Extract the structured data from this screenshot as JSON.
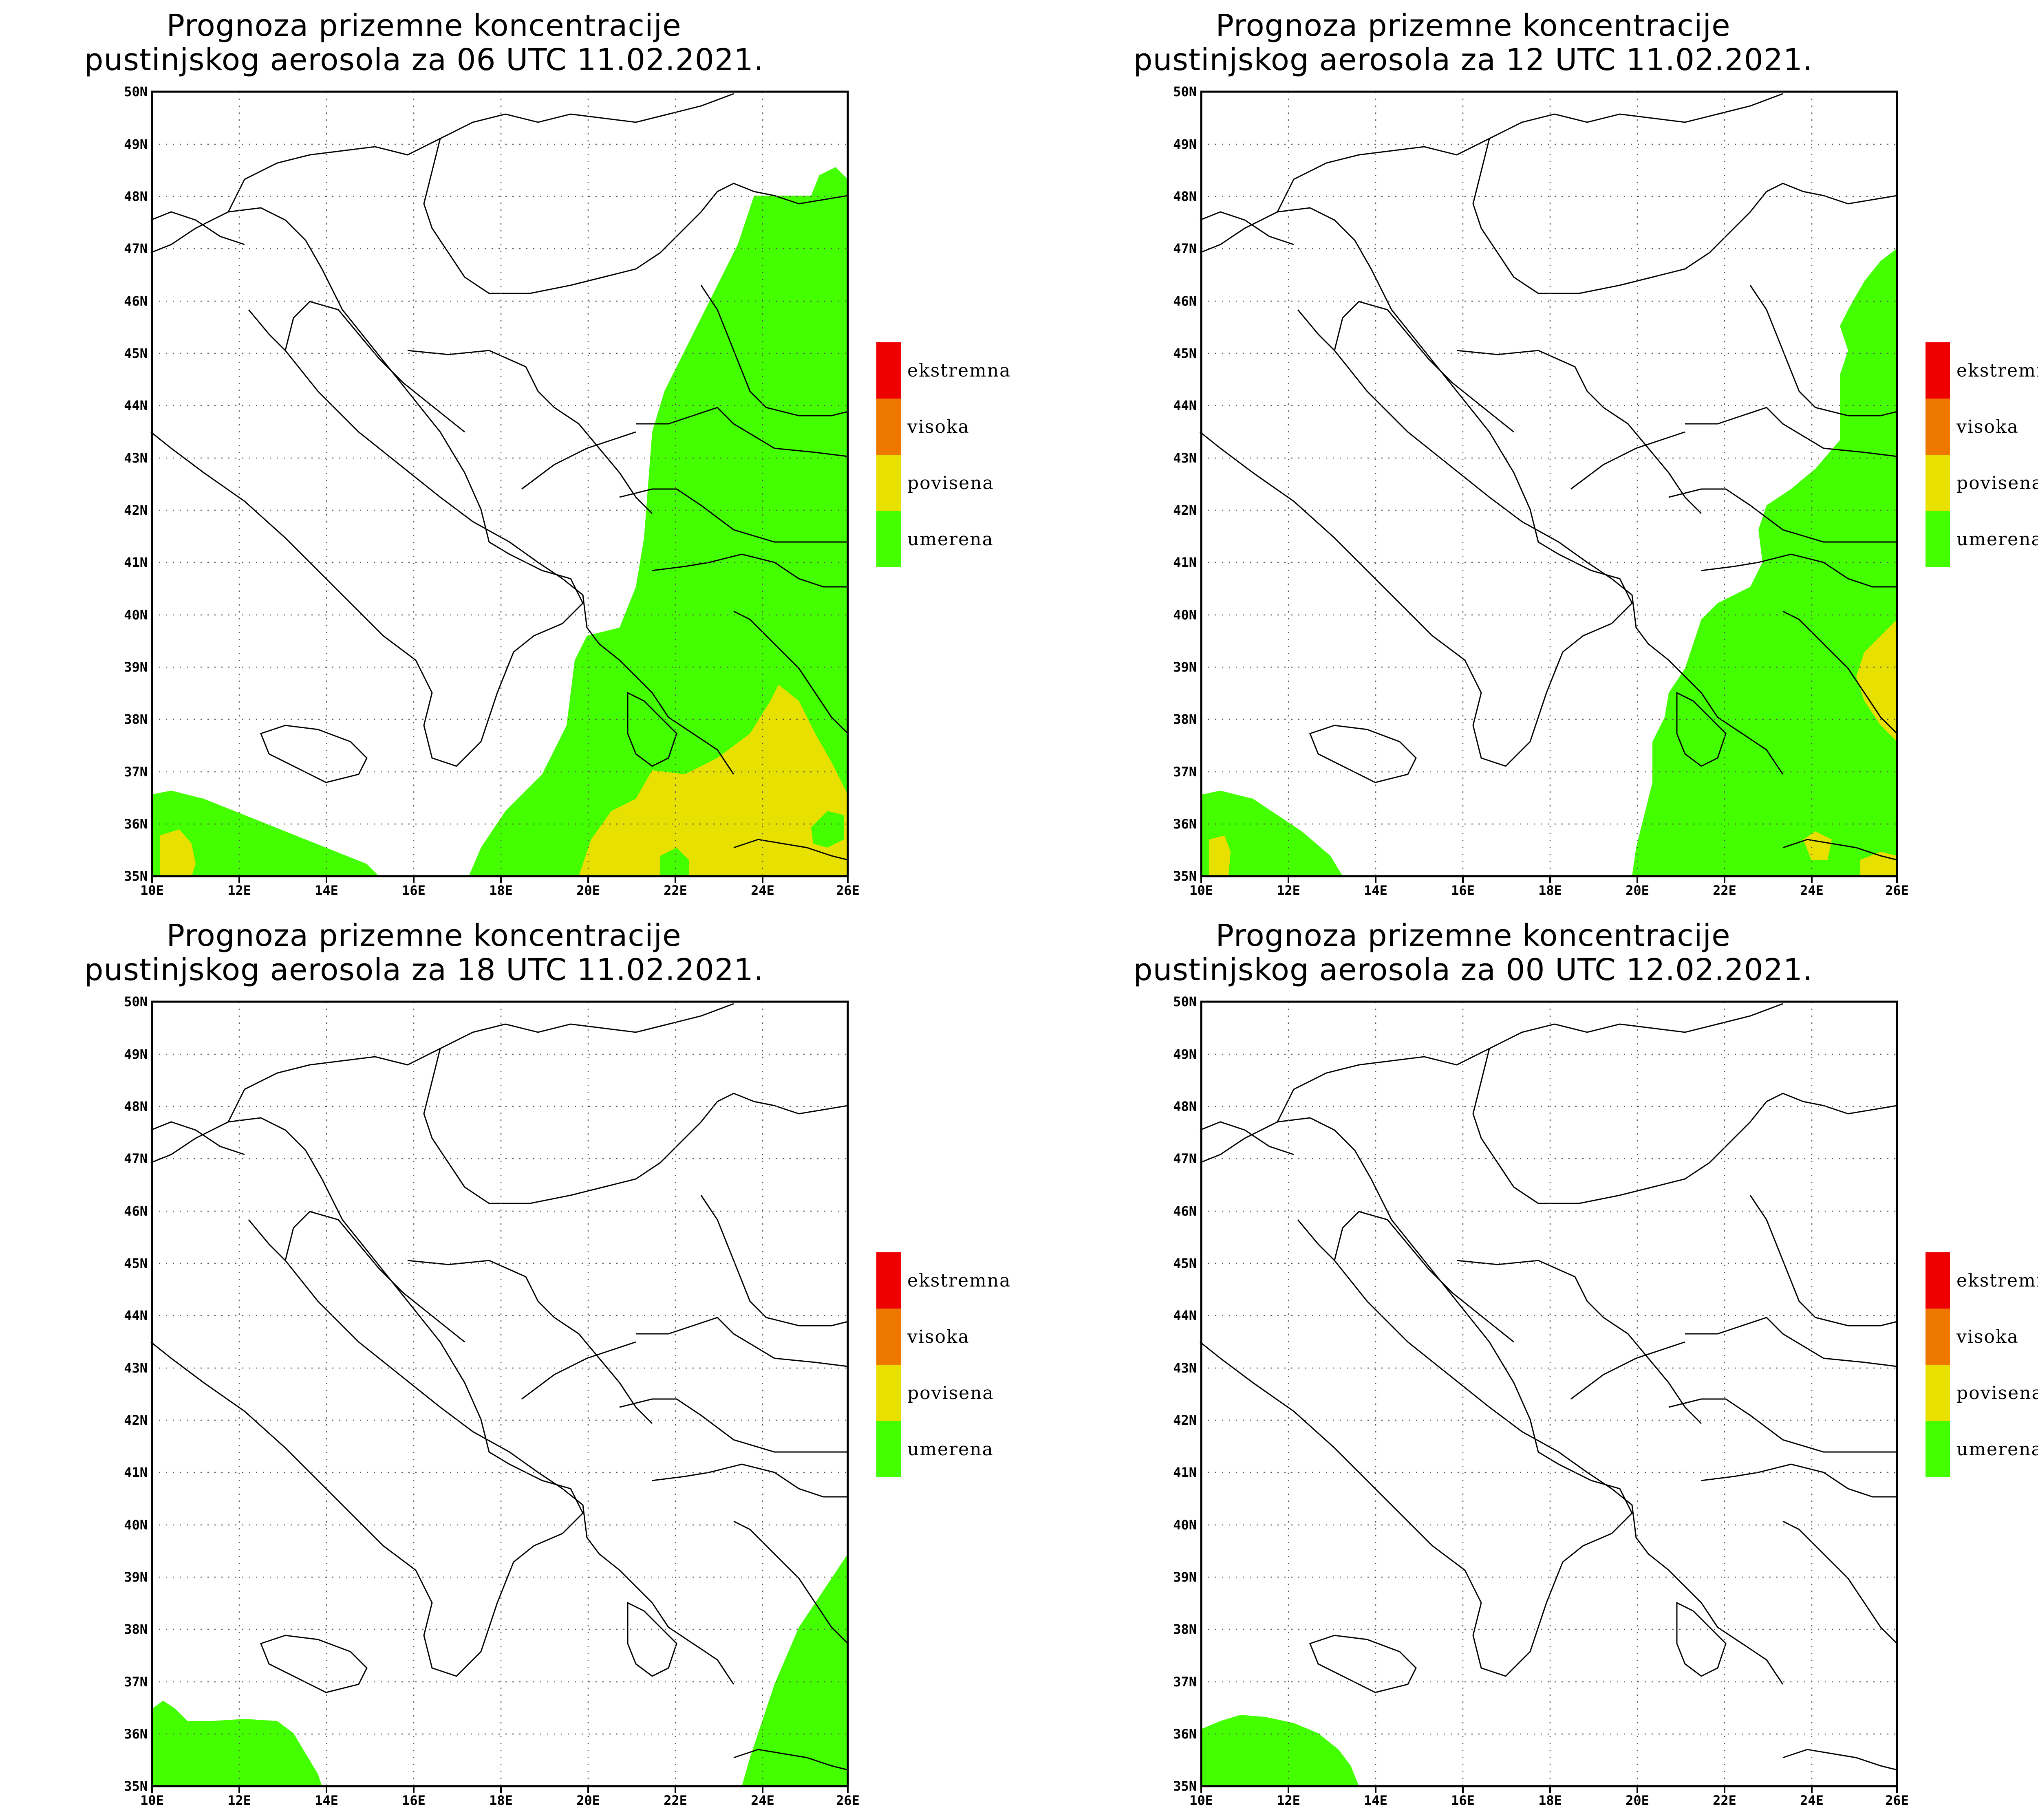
{
  "colors": {
    "ekstremna": "#ee0000",
    "visoka": "#ee7700",
    "povisena": "#e8e000",
    "umerena": "#44ff00",
    "background": "#ffffff",
    "border": "#000000",
    "grid": "#555555"
  },
  "legend": [
    "ekstremna",
    "visoka",
    "povisena",
    "umerena"
  ],
  "x_ticks": [
    "10E",
    "12E",
    "14E",
    "16E",
    "18E",
    "20E",
    "22E",
    "24E",
    "26E"
  ],
  "y_ticks": [
    "35N",
    "36N",
    "37N",
    "38N",
    "39N",
    "40N",
    "41N",
    "42N",
    "43N",
    "44N",
    "45N",
    "46N",
    "47N",
    "48N",
    "49N",
    "50N"
  ],
  "panels": [
    {
      "title_line1": "Prognoza prizemne koncentracije",
      "title_line2": "pustinjskog aerosola za 06 UTC 11.02.2021.",
      "legend_labels": [
        "ekstremna",
        "visoka",
        "povisena",
        "umerena"
      ]
    },
    {
      "title_line1": "Prognoza prizemne koncentracije",
      "title_line2": "pustinjskog aerosola za 12 UTC 11.02.2021.",
      "legend_labels": [
        "ekstremna",
        "visoka",
        "povisena",
        "umerena"
      ]
    },
    {
      "title_line1": "Prognoza prizemne koncentracije",
      "title_line2": "pustinjskog aerosola za 18 UTC 11.02.2021.",
      "legend_labels": [
        "ekstremna",
        "visoka",
        "povisena",
        "umerena"
      ]
    },
    {
      "title_line1": "Prognoza prizemne koncentracije",
      "title_line2": "pustinjskog aerosola za 00 UTC 12.02.2021.",
      "legend_labels": [
        "ekstremna",
        "visoka",
        "povisena",
        "umerena"
      ]
    }
  ]
}
